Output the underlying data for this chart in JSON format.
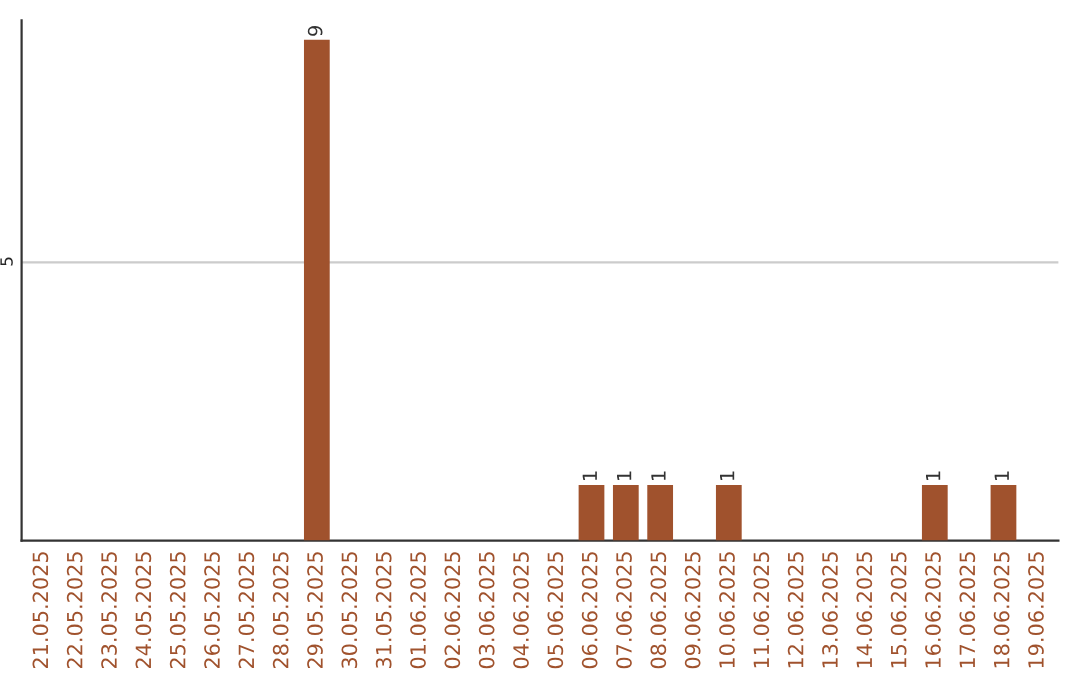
{
  "chart_data": {
    "type": "bar",
    "categories": [
      "21.05.2025",
      "22.05.2025",
      "23.05.2025",
      "24.05.2025",
      "25.05.2025",
      "26.05.2025",
      "27.05.2025",
      "28.05.2025",
      "29.05.2025",
      "30.05.2025",
      "31.05.2025",
      "01.06.2025",
      "02.06.2025",
      "03.06.2025",
      "04.06.2025",
      "05.06.2025",
      "06.06.2025",
      "07.06.2025",
      "08.06.2025",
      "09.06.2025",
      "10.06.2025",
      "11.06.2025",
      "12.06.2025",
      "13.06.2025",
      "14.06.2025",
      "15.06.2025",
      "16.06.2025",
      "17.06.2025",
      "18.06.2025",
      "19.06.2025"
    ],
    "values": [
      0,
      0,
      0,
      0,
      0,
      0,
      0,
      0,
      9,
      0,
      0,
      0,
      0,
      0,
      0,
      0,
      1,
      1,
      1,
      0,
      1,
      0,
      0,
      0,
      0,
      0,
      1,
      0,
      1,
      0
    ],
    "value_labels": [
      null,
      null,
      null,
      null,
      null,
      null,
      null,
      null,
      "9",
      null,
      null,
      null,
      null,
      null,
      null,
      null,
      "1",
      "1",
      "1",
      null,
      "1",
      null,
      null,
      null,
      null,
      null,
      "1",
      null,
      "1",
      null
    ],
    "color": "#a0522d",
    "ylim": [
      0,
      9.35
    ],
    "yticks": [
      5
    ],
    "grid": "y",
    "legend": false
  }
}
